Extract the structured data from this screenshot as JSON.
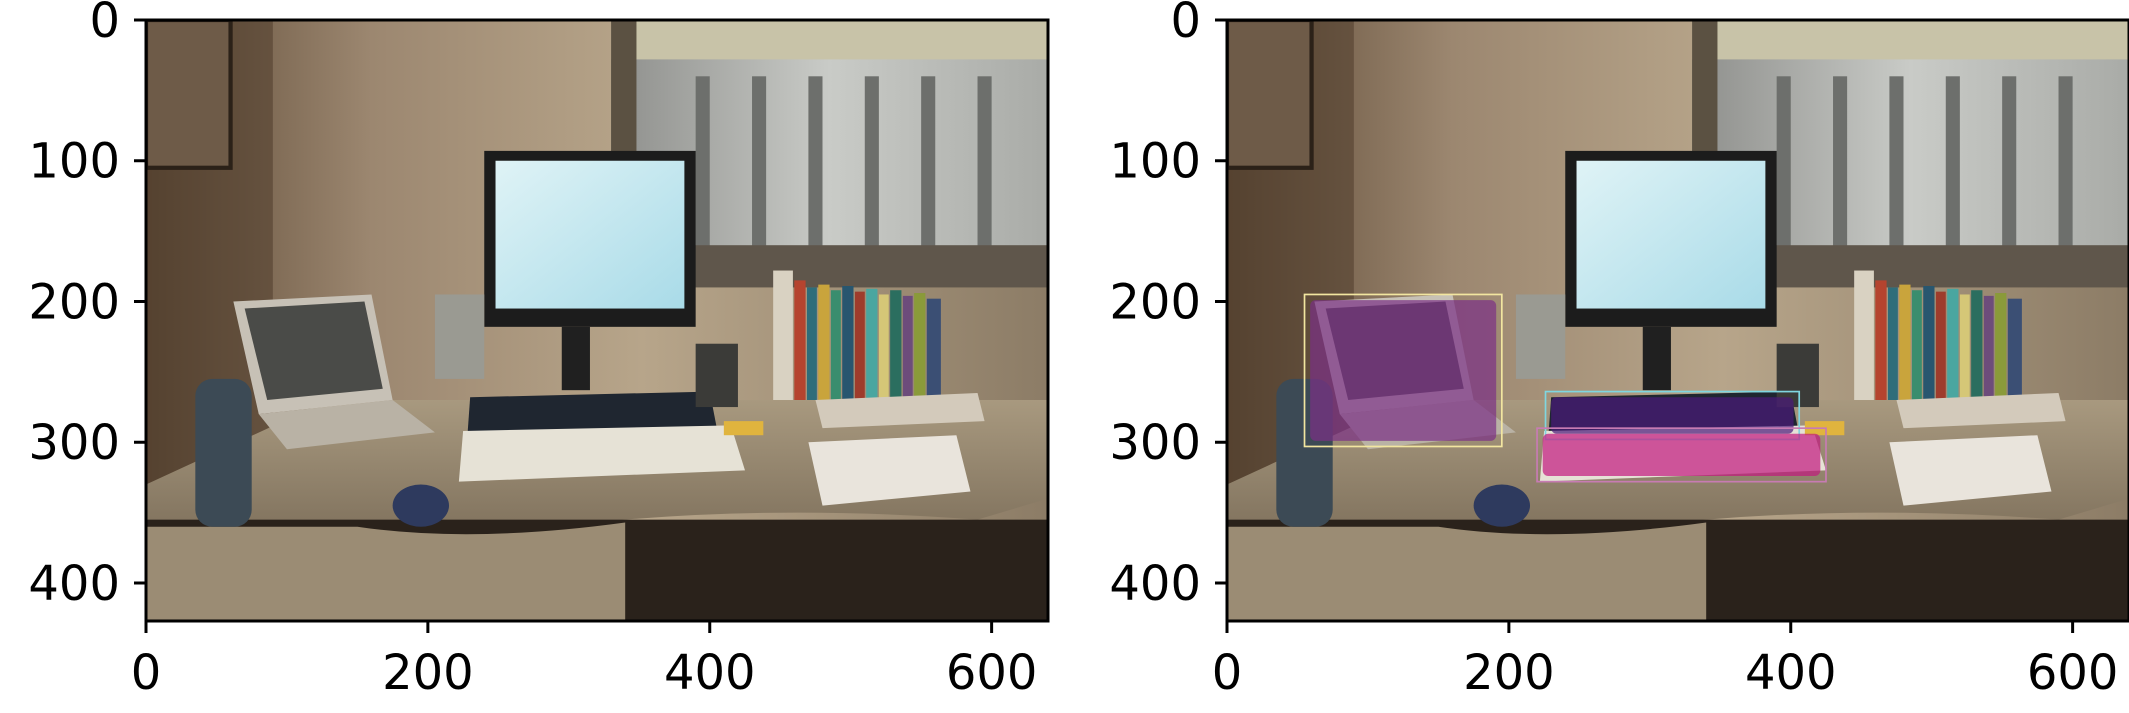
{
  "figure": {
    "panels": [
      {
        "id": "left",
        "xticks": [
          "0",
          "200",
          "400",
          "600"
        ],
        "yticks": [
          "0",
          "100",
          "200",
          "300",
          "400"
        ],
        "annotations": []
      },
      {
        "id": "right",
        "xticks": [
          "0",
          "200",
          "400",
          "600"
        ],
        "yticks": [
          "0",
          "100",
          "200",
          "300",
          "400"
        ],
        "annotations": [
          {
            "object": "laptop",
            "bbox_data": [
              55,
              195,
              195,
              303
            ],
            "color": "#f2e6a0",
            "mask_color": "#7a2f86"
          },
          {
            "object": "keyboard",
            "bbox_data": [
              226,
              264,
              406,
              298
            ],
            "color": "#7fd6e0",
            "mask_color": "#4a1a7a"
          },
          {
            "object": "keyboard",
            "bbox_data": [
              220,
              290,
              425,
              328
            ],
            "color": "#c77bb3",
            "mask_color": "#c2187f"
          }
        ]
      }
    ],
    "axis_ranges": {
      "x": [
        0,
        640
      ],
      "y": [
        0,
        427
      ]
    }
  }
}
